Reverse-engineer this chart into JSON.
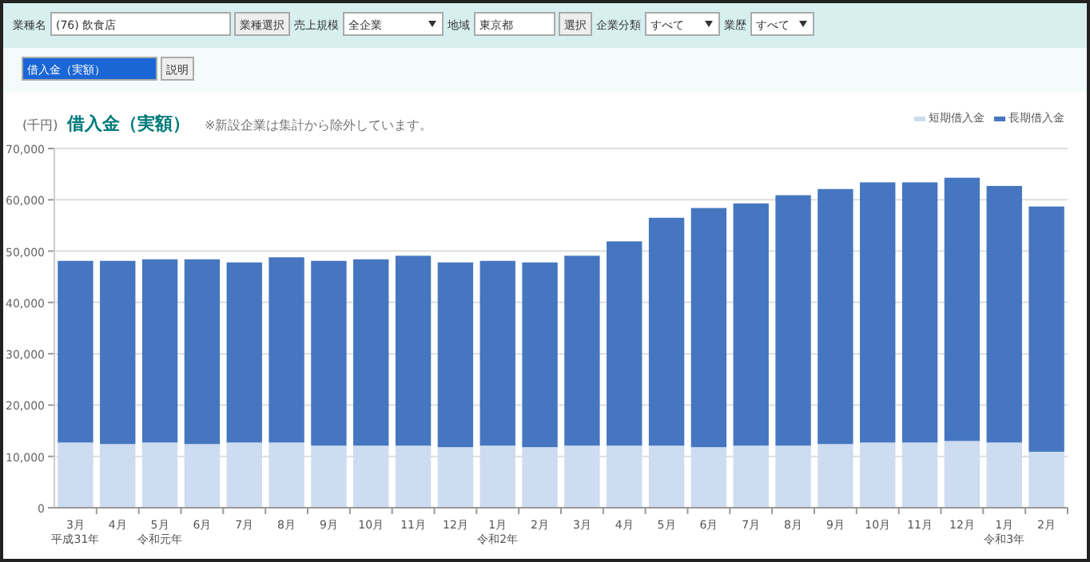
{
  "chart_data": {
    "type": "bar",
    "stacked": true,
    "title": "借入金（実額）",
    "subtitle": "※新設企業は集計から除外しています。",
    "ylabel": "(千円)",
    "categories": [
      "3月平成31年",
      "4月",
      "5月令和元年",
      "6月",
      "7月",
      "8月",
      "9月",
      "10月",
      "11月",
      "12月",
      "1月令和2年",
      "2月",
      "3月",
      "4月",
      "5月",
      "6月",
      "7月",
      "8月",
      "9月",
      "10月",
      "11月",
      "12月",
      "1月令和3年",
      "2月"
    ],
    "series": [
      {
        "name": "短期借入金",
        "color": "#cddcf0",
        "values": [
          12700,
          12400,
          12700,
          12400,
          12700,
          12700,
          12100,
          12100,
          12100,
          11800,
          12100,
          11800,
          12100,
          12100,
          12100,
          11800,
          12100,
          12100,
          12400,
          12700,
          12700,
          13000,
          12700,
          10900
        ]
      },
      {
        "name": "長期借入金",
        "color": "#4676c0",
        "values": [
          35400,
          35700,
          35700,
          36000,
          35100,
          36100,
          36000,
          36300,
          37000,
          36000,
          36000,
          36000,
          37000,
          39800,
          44400,
          46600,
          47200,
          48800,
          49700,
          50700,
          50700,
          51300,
          50000,
          47800
        ]
      }
    ],
    "ylim": [
      0,
      70000
    ],
    "yticks": [
      0,
      {
        "value": 10000,
        "label": "10,000"
      },
      {
        "value": 20000,
        "label": "20,000"
      },
      {
        "value": 30000,
        "label": "30,000"
      },
      {
        "value": 40000,
        "label": "40,000"
      },
      {
        "value": 50000,
        "label": "50,000"
      },
      {
        "value": 60000,
        "label": "60,000"
      },
      {
        "value": 70000,
        "label": "70,000"
      }
    ],
    "grid": "y",
    "legend": "top right",
    "annotations": [
      "業種名",
      "(76) 飲食店",
      "業種選択",
      "売上規模",
      "全企業",
      "地域",
      "東京都",
      "選択",
      "企業分類",
      "すべて",
      "業歴",
      "すべて",
      "借入金（実額）",
      "説明"
    ]
  }
}
